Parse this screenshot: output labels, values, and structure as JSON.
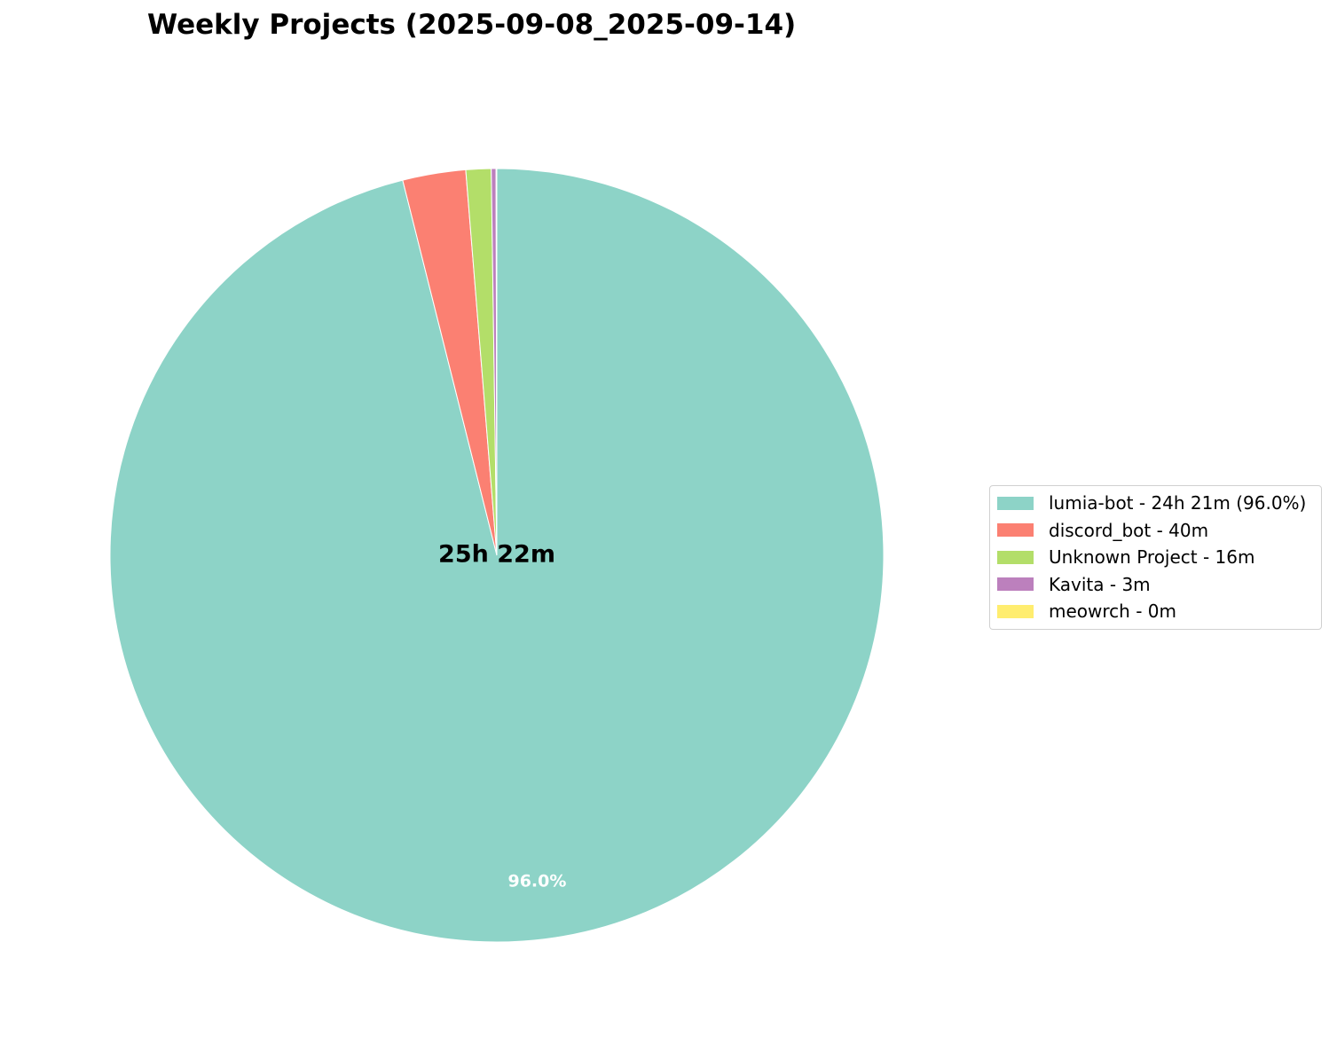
{
  "chart_data": {
    "type": "pie",
    "title": "Weekly Projects (2025-09-08_2025-09-14)",
    "center_label": "25h 22m",
    "start_angle_deg": 90,
    "direction": "clockwise",
    "slices": [
      {
        "name": "lumia-bot",
        "minutes": 1461,
        "percent": 96.0,
        "color": "#8dd3c7",
        "legend": "lumia-bot - 24h 21m (96.0%)",
        "label": "96.0%"
      },
      {
        "name": "discord_bot",
        "minutes": 40,
        "percent": 2.63,
        "color": "#fb8072",
        "legend": "discord_bot - 40m",
        "label": ""
      },
      {
        "name": "Unknown Project",
        "minutes": 16,
        "percent": 1.05,
        "color": "#b3de69",
        "legend": "Unknown Project - 16m",
        "label": ""
      },
      {
        "name": "Kavita",
        "minutes": 3,
        "percent": 0.2,
        "color": "#bc80bd",
        "legend": "Kavita - 3m",
        "label": ""
      },
      {
        "name": "meowrch",
        "minutes": 0.4,
        "percent": 0.03,
        "color": "#ffed6f",
        "legend": "meowrch - 0m",
        "label": ""
      }
    ],
    "legend_position": "right"
  }
}
